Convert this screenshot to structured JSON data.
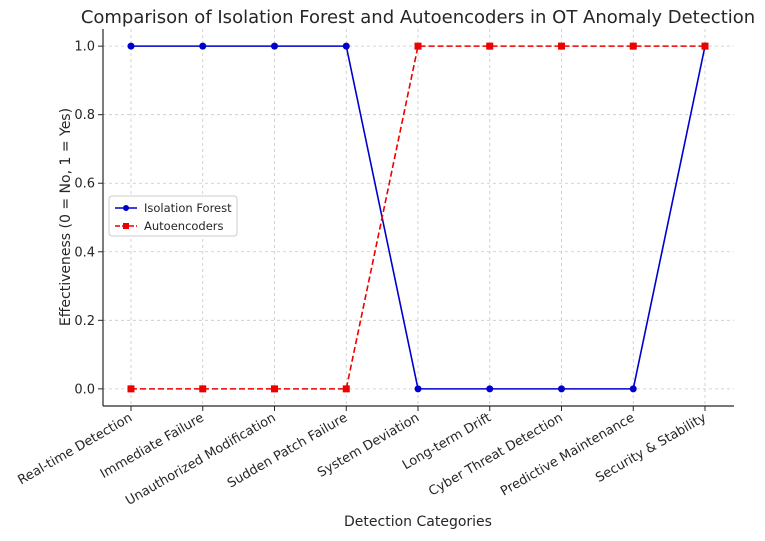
{
  "chart_data": {
    "type": "line",
    "title": "Comparison of Isolation Forest and Autoencoders in OT Anomaly Detection",
    "xlabel": "Detection Categories",
    "ylabel": "Effectiveness (0 = No, 1 = Yes)",
    "categories": [
      "Real-time Detection",
      "Immediate Failure",
      "Unauthorized Modification",
      "Sudden Patch Failure",
      "System Deviation",
      "Long-term Drift",
      "Cyber Threat Detection",
      "Predictive Maintenance",
      "Security & Stability"
    ],
    "series": [
      {
        "name": "Isolation Forest",
        "values": [
          1,
          1,
          1,
          1,
          0,
          0,
          0,
          0,
          1
        ],
        "color": "#0000cc",
        "line_style": "solid",
        "marker": "circle"
      },
      {
        "name": "Autoencoders",
        "values": [
          0,
          0,
          0,
          0,
          1,
          1,
          1,
          1,
          1
        ],
        "color": "#ee0000",
        "line_style": "dashed",
        "marker": "square"
      }
    ],
    "ylim": [
      -0.05,
      1.05
    ],
    "yticks": [
      "0.0",
      "0.2",
      "0.4",
      "0.6",
      "0.8",
      "1.0"
    ],
    "ytick_values": [
      0,
      0.2,
      0.4,
      0.6,
      0.8,
      1.0
    ],
    "grid": true,
    "legend_position": "center-left"
  }
}
